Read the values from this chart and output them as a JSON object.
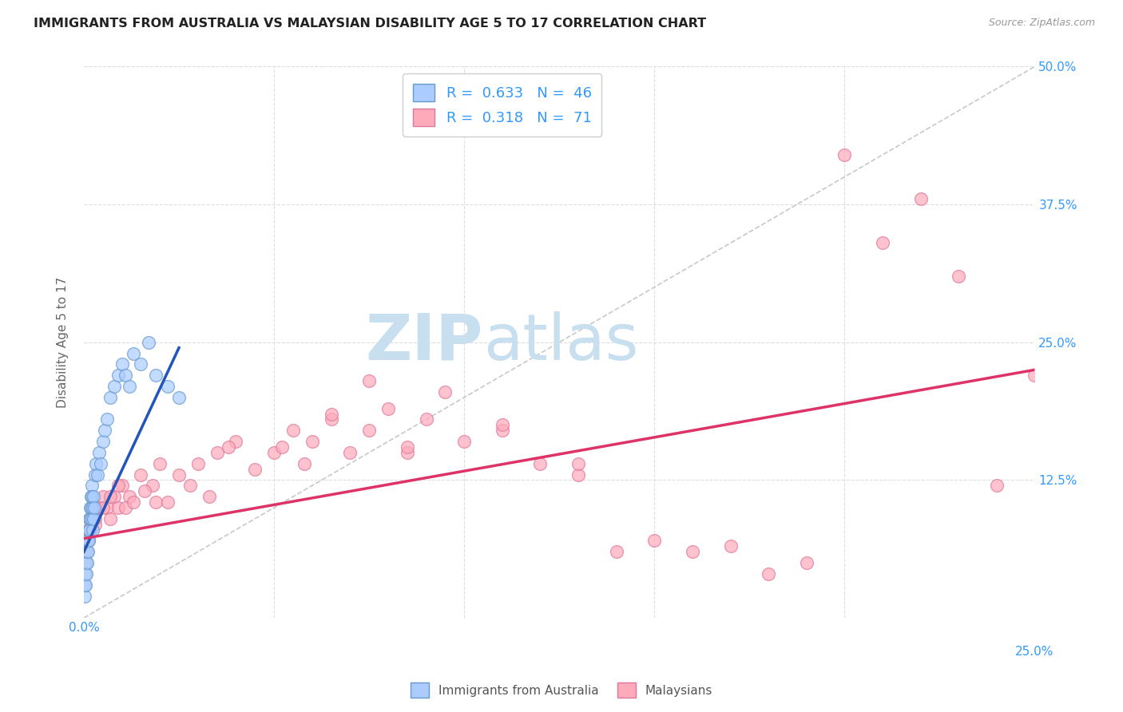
{
  "title": "IMMIGRANTS FROM AUSTRALIA VS MALAYSIAN DISABILITY AGE 5 TO 17 CORRELATION CHART",
  "source": "Source: ZipAtlas.com",
  "ylabel": "Disability Age 5 to 17",
  "background_color": "#ffffff",
  "grid_color": "#dddddd",
  "title_color": "#222222",
  "source_color": "#999999",
  "watermark_zip": "ZIP",
  "watermark_atlas": "atlas",
  "watermark_color_zip": "#c8dff0",
  "watermark_color_atlas": "#c8dff0",
  "legend_color": "#3399ff",
  "series1_color": "#aaccff",
  "series2_color": "#ffaabb",
  "series1_edge": "#6699cc",
  "series2_edge": "#dd7799",
  "trend1_color": "#2255bb",
  "trend2_color": "#dd3366",
  "diag_color": "#bbbbbb",
  "xlim": [
    0.0,
    0.25
  ],
  "ylim": [
    0.0,
    0.5
  ],
  "aus_x": [
    0.0002,
    0.0003,
    0.0004,
    0.0005,
    0.0006,
    0.0007,
    0.0008,
    0.0009,
    0.001,
    0.0011,
    0.0012,
    0.0013,
    0.0014,
    0.0015,
    0.0016,
    0.0017,
    0.0018,
    0.0019,
    0.002,
    0.0021,
    0.0022,
    0.0023,
    0.0024,
    0.0025,
    0.0026,
    0.0027,
    0.003,
    0.0032,
    0.0035,
    0.004,
    0.0045,
    0.005,
    0.0055,
    0.006,
    0.007,
    0.008,
    0.009,
    0.01,
    0.011,
    0.012,
    0.013,
    0.015,
    0.017,
    0.019,
    0.022,
    0.025
  ],
  "aus_y": [
    0.02,
    0.03,
    0.04,
    0.03,
    0.05,
    0.04,
    0.06,
    0.05,
    0.07,
    0.06,
    0.08,
    0.07,
    0.09,
    0.08,
    0.1,
    0.09,
    0.11,
    0.1,
    0.12,
    0.09,
    0.11,
    0.1,
    0.08,
    0.09,
    0.11,
    0.1,
    0.13,
    0.14,
    0.13,
    0.15,
    0.14,
    0.16,
    0.17,
    0.18,
    0.2,
    0.21,
    0.22,
    0.23,
    0.22,
    0.21,
    0.24,
    0.23,
    0.25,
    0.22,
    0.21,
    0.2
  ],
  "mal_x": [
    0.0002,
    0.0004,
    0.0006,
    0.0008,
    0.001,
    0.0012,
    0.0015,
    0.0018,
    0.002,
    0.003,
    0.004,
    0.005,
    0.006,
    0.007,
    0.008,
    0.009,
    0.01,
    0.012,
    0.015,
    0.018,
    0.02,
    0.025,
    0.03,
    0.035,
    0.04,
    0.05,
    0.055,
    0.06,
    0.065,
    0.07,
    0.075,
    0.08,
    0.085,
    0.09,
    0.1,
    0.11,
    0.12,
    0.13,
    0.14,
    0.15,
    0.16,
    0.17,
    0.18,
    0.19,
    0.2,
    0.21,
    0.22,
    0.23,
    0.24,
    0.25,
    0.003,
    0.005,
    0.007,
    0.009,
    0.011,
    0.013,
    0.016,
    0.019,
    0.022,
    0.028,
    0.033,
    0.038,
    0.045,
    0.052,
    0.058,
    0.065,
    0.075,
    0.085,
    0.095,
    0.11,
    0.13
  ],
  "mal_y": [
    0.06,
    0.05,
    0.07,
    0.06,
    0.08,
    0.07,
    0.09,
    0.08,
    0.1,
    0.09,
    0.1,
    0.11,
    0.1,
    0.09,
    0.11,
    0.1,
    0.12,
    0.11,
    0.13,
    0.12,
    0.14,
    0.13,
    0.14,
    0.15,
    0.16,
    0.15,
    0.17,
    0.16,
    0.18,
    0.15,
    0.17,
    0.19,
    0.15,
    0.18,
    0.16,
    0.17,
    0.14,
    0.13,
    0.06,
    0.07,
    0.06,
    0.065,
    0.04,
    0.05,
    0.42,
    0.34,
    0.38,
    0.31,
    0.12,
    0.22,
    0.085,
    0.1,
    0.11,
    0.12,
    0.1,
    0.105,
    0.115,
    0.105,
    0.105,
    0.12,
    0.11,
    0.155,
    0.135,
    0.155,
    0.14,
    0.185,
    0.215,
    0.155,
    0.205,
    0.175,
    0.14
  ],
  "trend1_x_start": 0.0,
  "trend1_y_start": 0.06,
  "trend1_x_end": 0.025,
  "trend1_y_end": 0.245,
  "trend2_x_start": 0.0,
  "trend2_y_start": 0.072,
  "trend2_x_end": 0.25,
  "trend2_y_end": 0.225
}
